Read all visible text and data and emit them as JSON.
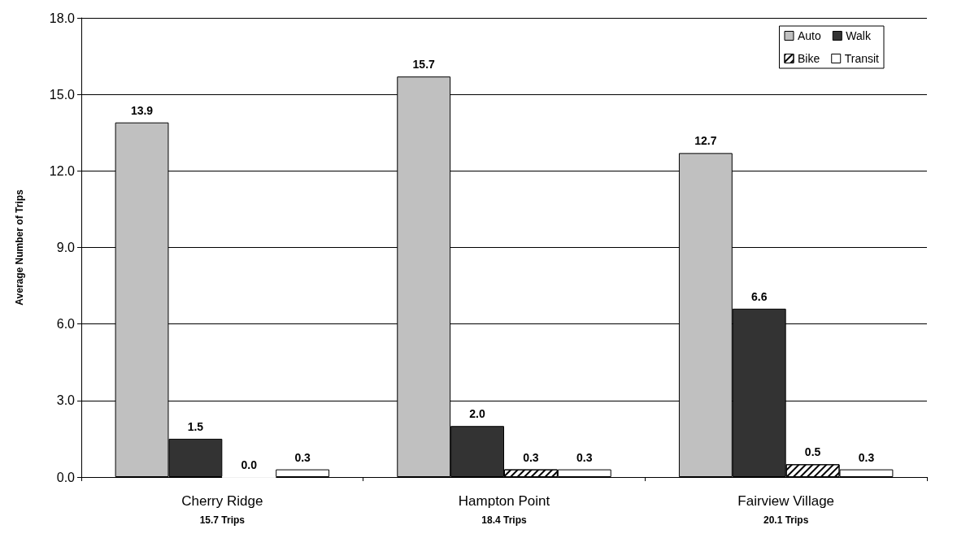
{
  "chart_data": {
    "type": "bar",
    "ylabel": "Average Number of Trips",
    "categories": [
      "Cherry Ridge\n15.7 Trips",
      "Hampton Point\n18.4 Trips",
      "Fairview Village\n20.1 Trips"
    ],
    "series": [
      {
        "name": "Auto",
        "color": "#c0c0c0",
        "values": [
          13.9,
          15.7,
          12.7
        ],
        "value_labels": [
          "13.9",
          "15.7",
          "12.7"
        ]
      },
      {
        "name": "Walk",
        "color": "#333333",
        "values": [
          1.5,
          2.0,
          6.6
        ],
        "value_labels": [
          "1.5",
          "2.0",
          "6.6"
        ]
      },
      {
        "name": "Bike",
        "color": "#ffffff",
        "values": [
          0.0,
          0.3,
          0.5
        ],
        "value_labels": [
          "0.0",
          "0.3",
          "0.5"
        ]
      },
      {
        "name": "Transit",
        "color": "#ffffff",
        "values": [
          0.3,
          0.3,
          0.3
        ],
        "value_labels": [
          "0.3",
          "0.3",
          "0.3"
        ]
      }
    ],
    "ylim": [
      0,
      18
    ],
    "yticks": [
      {
        "value": 0,
        "label": "0.0"
      },
      {
        "value": 3,
        "label": "3.0"
      },
      {
        "value": 6,
        "label": "6.0"
      },
      {
        "value": 9,
        "label": "9.0"
      },
      {
        "value": 12,
        "label": "12.0"
      },
      {
        "value": 15,
        "label": "15.0"
      },
      {
        "value": 18,
        "label": "18.0"
      }
    ],
    "grid": "y",
    "legend": "top right"
  }
}
